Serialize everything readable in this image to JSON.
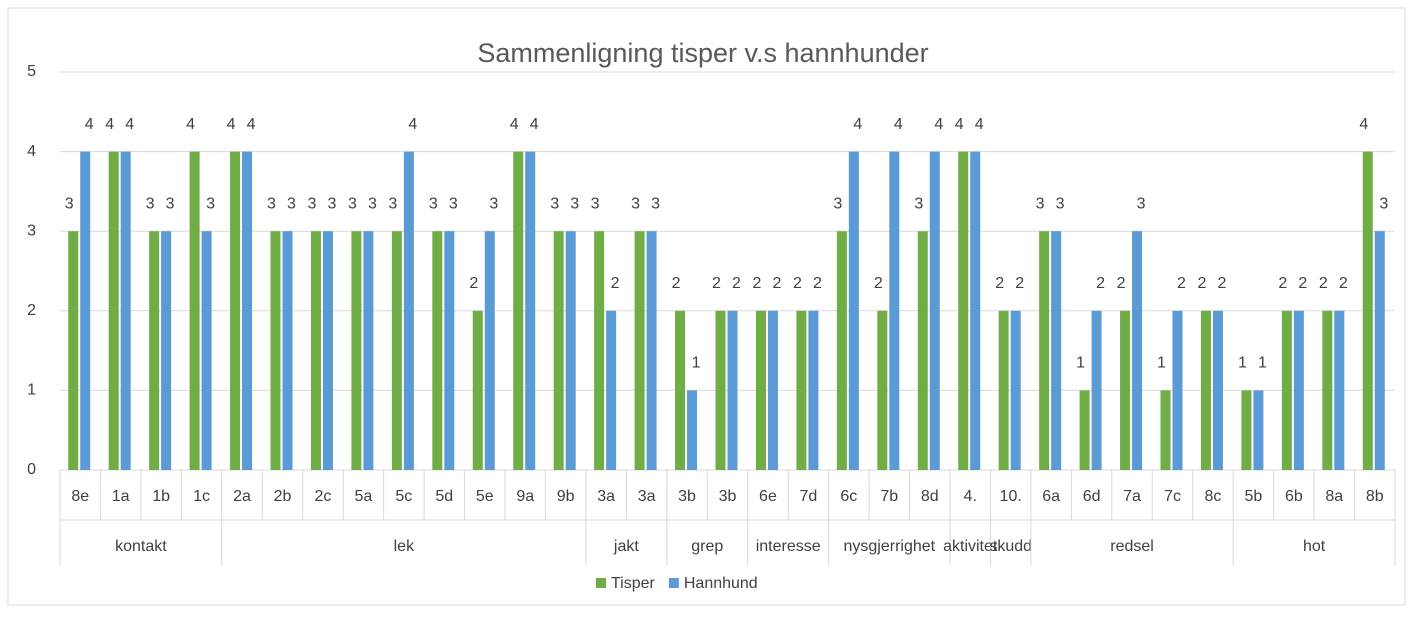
{
  "chart_data": {
    "type": "bar",
    "title": "Sammenligning tisper v.s hannhunder",
    "groups": [
      {
        "name": "kontakt",
        "categories": [
          "8e",
          "1a",
          "1b",
          "1c"
        ]
      },
      {
        "name": "lek",
        "categories": [
          "2a",
          "2b",
          "2c",
          "5a",
          "5c",
          "5d",
          "5e",
          "9a",
          "9b"
        ]
      },
      {
        "name": "jakt",
        "categories": [
          "3a",
          "3a"
        ]
      },
      {
        "name": "grep",
        "categories": [
          "3b",
          "3b"
        ]
      },
      {
        "name": "interesse",
        "categories": [
          "6e",
          "7d"
        ]
      },
      {
        "name": "nysgjerrighet",
        "categories": [
          "6c",
          "7b",
          "8d"
        ]
      },
      {
        "name": "aktivitet",
        "categories": [
          "4."
        ]
      },
      {
        "name": "skudd",
        "categories": [
          "10."
        ]
      },
      {
        "name": "redsel",
        "categories": [
          "6a",
          "6d",
          "7a",
          "7c",
          "8c"
        ]
      },
      {
        "name": "hot",
        "categories": [
          "5b",
          "6b",
          "8a",
          "8b"
        ]
      }
    ],
    "series": [
      {
        "name": "Tisper",
        "color": "#70ad47",
        "values": [
          3,
          4,
          3,
          4,
          4,
          3,
          3,
          3,
          3,
          3,
          2,
          4,
          3,
          3,
          3,
          2,
          2,
          2,
          2,
          3,
          2,
          3,
          4,
          2,
          3,
          1,
          2,
          1,
          2,
          1,
          2,
          2,
          4
        ]
      },
      {
        "name": "Hannhund",
        "color": "#5b9bd5",
        "values": [
          4,
          4,
          3,
          3,
          4,
          3,
          3,
          3,
          4,
          3,
          3,
          4,
          3,
          2,
          3,
          1,
          2,
          2,
          2,
          4,
          4,
          4,
          4,
          2,
          3,
          2,
          3,
          2,
          2,
          1,
          2,
          2,
          3
        ]
      }
    ],
    "ylim": [
      0,
      5
    ],
    "yticks": [
      0,
      1,
      2,
      3,
      4,
      5
    ],
    "grid": true,
    "legend": "bottom",
    "data_labels": true
  }
}
